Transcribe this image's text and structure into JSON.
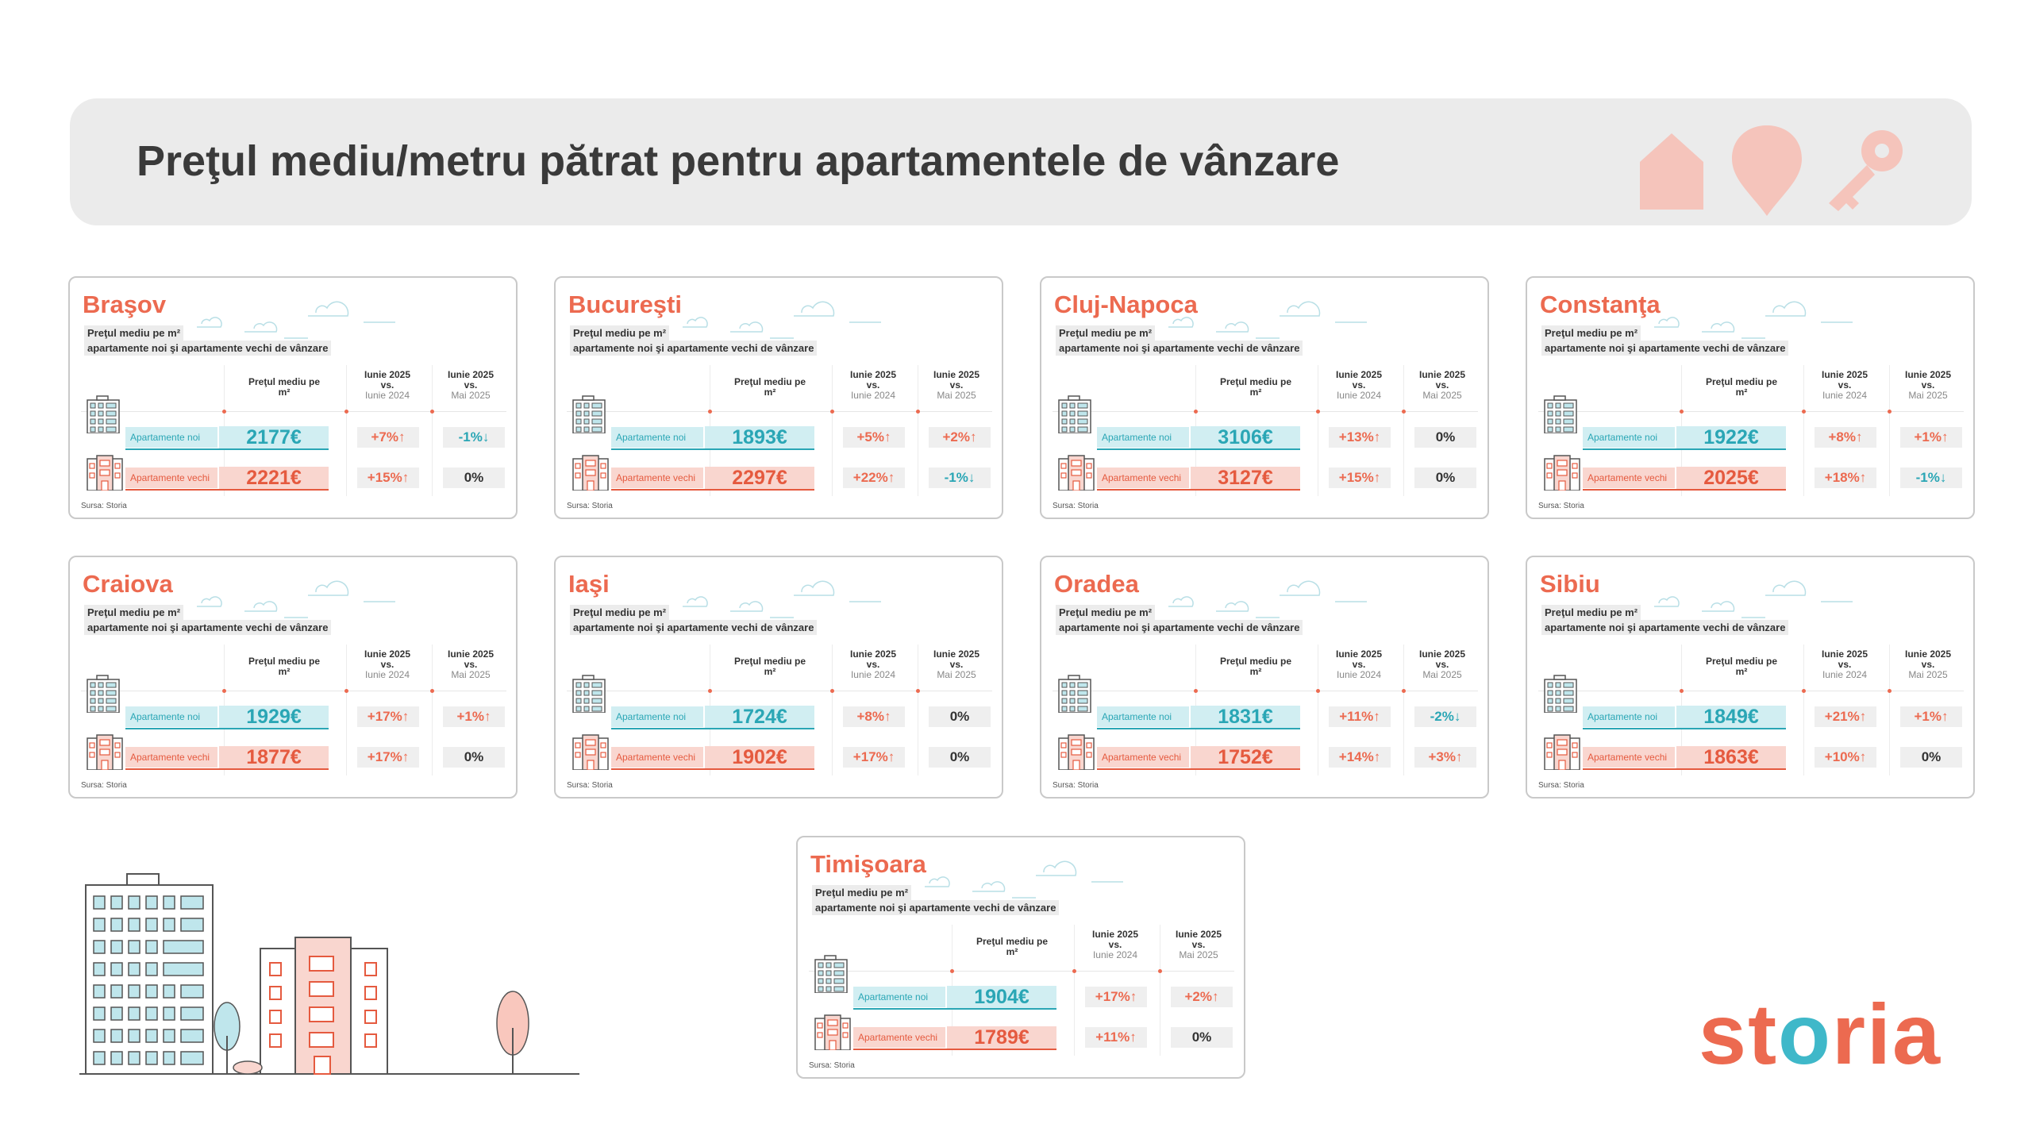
{
  "header": {
    "title": "Preţul mediu/metru pătrat pentru apartamentele de vânzare",
    "icons": [
      "house-icon",
      "location-pin-icon",
      "key-icon"
    ],
    "accent_color": "#f5c4bb"
  },
  "labels": {
    "subtitle_line1": "Preţul mediu pe m²",
    "subtitle_line2": "apartamente noi şi apartamente vechi de vânzare",
    "col_price": "Preţul mediu pe m²",
    "col_yoy_top": "Iunie 2025",
    "col_yoy_mid": "vs.",
    "col_yoy_bottom": "Iunie 2024",
    "col_mom_top": "Iunie 2025",
    "col_mom_mid": "vs.",
    "col_mom_bottom": "Mai 2025",
    "new_label": "Apartamente noi",
    "old_label": "Apartamente vechi",
    "source": "Sursa: Storia"
  },
  "colors": {
    "brand": "#ec6a50",
    "new": "#2aa6b5",
    "old": "#e55a3f"
  },
  "cities": [
    {
      "name": "Braşov",
      "new_price": "2177€",
      "new_yoy": "+7%↑",
      "new_mom": "-1%↓",
      "old_price": "2221€",
      "old_yoy": "+15%↑",
      "old_mom": "0%"
    },
    {
      "name": "Bucureşti",
      "new_price": "1893€",
      "new_yoy": "+5%↑",
      "new_mom": "+2%↑",
      "old_price": "2297€",
      "old_yoy": "+22%↑",
      "old_mom": "-1%↓"
    },
    {
      "name": "Cluj-Napoca",
      "new_price": "3106€",
      "new_yoy": "+13%↑",
      "new_mom": "0%",
      "old_price": "3127€",
      "old_yoy": "+15%↑",
      "old_mom": "0%"
    },
    {
      "name": "Constanţa",
      "new_price": "1922€",
      "new_yoy": "+8%↑",
      "new_mom": "+1%↑",
      "old_price": "2025€",
      "old_yoy": "+18%↑",
      "old_mom": "-1%↓"
    },
    {
      "name": "Craiova",
      "new_price": "1929€",
      "new_yoy": "+17%↑",
      "new_mom": "+1%↑",
      "old_price": "1877€",
      "old_yoy": "+17%↑",
      "old_mom": "0%"
    },
    {
      "name": "Iaşi",
      "new_price": "1724€",
      "new_yoy": "+8%↑",
      "new_mom": "0%",
      "old_price": "1902€",
      "old_yoy": "+17%↑",
      "old_mom": "0%"
    },
    {
      "name": "Oradea",
      "new_price": "1831€",
      "new_yoy": "+11%↑",
      "new_mom": "-2%↓",
      "old_price": "1752€",
      "old_yoy": "+14%↑",
      "old_mom": "+3%↑"
    },
    {
      "name": "Sibiu",
      "new_price": "1849€",
      "new_yoy": "+21%↑",
      "new_mom": "+1%↑",
      "old_price": "1863€",
      "old_yoy": "+10%↑",
      "old_mom": "0%"
    },
    {
      "name": "Timişoara",
      "new_price": "1904€",
      "new_yoy": "+17%↑",
      "new_mom": "+2%↑",
      "old_price": "1789€",
      "old_yoy": "+11%↑",
      "old_mom": "0%"
    }
  ],
  "logo": {
    "prefix": "st",
    "o": "o",
    "suffix": "ria"
  }
}
